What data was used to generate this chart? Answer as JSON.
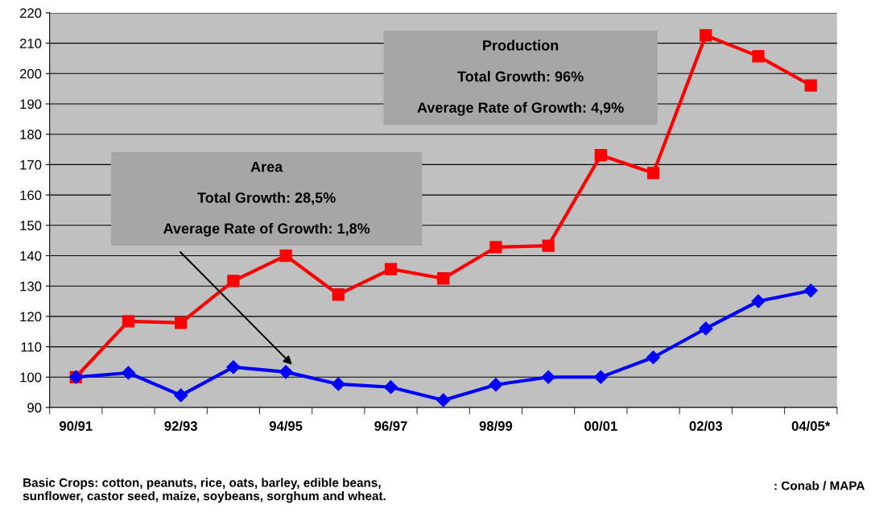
{
  "chart_data": {
    "type": "line",
    "categories": [
      "90/91",
      null,
      "92/93",
      null,
      "94/95",
      null,
      "96/97",
      null,
      "98/99",
      null,
      "00/01",
      null,
      "02/03",
      null,
      "04/05*"
    ],
    "series": [
      {
        "name": null,
        "color": "#ff0000",
        "marker": "square",
        "values": [
          100,
          118.4,
          117.9,
          131.7,
          140,
          127.2,
          135.6,
          132.5,
          142.8,
          143.3,
          173.1,
          167.2,
          212.6,
          205.7,
          196.1
        ]
      },
      {
        "name": null,
        "color": "#0000ff",
        "marker": "diamond",
        "values": [
          100,
          101.4,
          94,
          103.3,
          101.7,
          97.7,
          96.7,
          92.4,
          97.5,
          100,
          100,
          106.5,
          116,
          125,
          128.5
        ]
      }
    ],
    "ylim": [
      90,
      220
    ],
    "yticks": [
      90,
      100,
      110,
      120,
      130,
      140,
      150,
      160,
      170,
      180,
      190,
      200,
      210,
      220
    ],
    "grid": "y",
    "annotations": [
      "Area",
      "Total Growth: 28,5%",
      "Average Rate of Growth: 1,8%",
      "Production",
      "Total Growth: 96%",
      "Average Rate of Growth: 4,9%",
      "Basic Crops: cotton, peanuts, rice, oats, barley, edible beans,\nsunflower, castor seed, maize, soybeans, sorghum and wheat.",
      ": Conab / MAPA"
    ]
  }
}
